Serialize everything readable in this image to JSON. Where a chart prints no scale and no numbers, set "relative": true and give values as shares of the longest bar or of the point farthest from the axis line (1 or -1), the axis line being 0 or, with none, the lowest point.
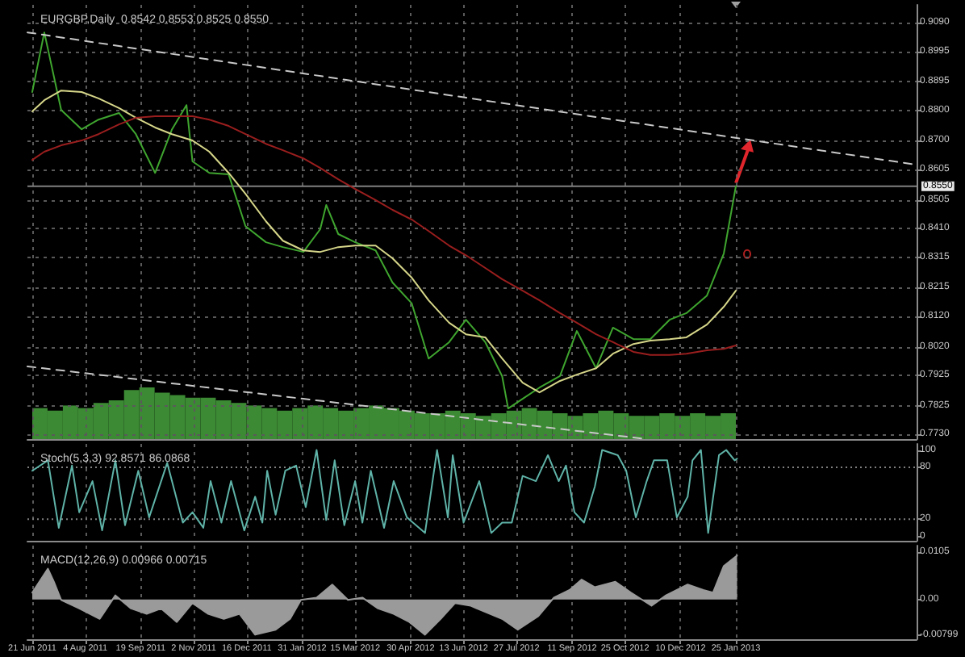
{
  "chart_data": [
    {
      "type": "line",
      "title": "EURGBP,Daily  0.8542 0.8553 0.8525 0.8550",
      "marker": "none",
      "grid": true,
      "tick_labels": "y",
      "xlim": [
        "2011-06-17",
        "2013-06-24"
      ],
      "xticks": [
        {
          "value": "2011-06-21",
          "label": null
        },
        {
          "value": "2011-08-04",
          "label": null
        },
        {
          "value": "2011-09-19",
          "label": null
        },
        {
          "value": "2011-11-02",
          "label": null
        },
        {
          "value": "2011-12-16",
          "label": null
        },
        {
          "value": "2012-01-31",
          "label": null
        },
        {
          "value": "2012-03-15",
          "label": null
        },
        {
          "value": "2012-04-30",
          "label": null
        },
        {
          "value": "2012-06-13",
          "label": null
        },
        {
          "value": "2012-07-27",
          "label": null
        },
        {
          "value": "2012-09-11",
          "label": null
        },
        {
          "value": "2012-10-25",
          "label": null
        },
        {
          "value": "2012-12-10",
          "label": null
        },
        {
          "value": "2013-01-25",
          "label": null
        }
      ],
      "ylim": [
        0.7715,
        0.9149
      ],
      "yticks": [
        {
          "value": 0.773,
          "label": "0.7730"
        },
        {
          "value": 0.7825,
          "label": "0.7825"
        },
        {
          "value": 0.7925,
          "label": "0.7925"
        },
        {
          "value": 0.802,
          "label": "0.8020"
        },
        {
          "value": 0.812,
          "label": "0.8120"
        },
        {
          "value": 0.8215,
          "label": "0.8215"
        },
        {
          "value": 0.8315,
          "label": "0.8315"
        },
        {
          "value": 0.841,
          "label": "0.8410"
        },
        {
          "value": 0.8505,
          "label": "0.8505"
        },
        {
          "value": 0.8605,
          "label": "0.8605"
        },
        {
          "value": 0.87,
          "label": "0.8700"
        },
        {
          "value": 0.88,
          "label": "0.8800"
        },
        {
          "value": 0.8895,
          "label": "0.8895"
        },
        {
          "value": 0.8995,
          "label": "0.8995"
        },
        {
          "value": 0.909,
          "label": "0.9090"
        }
      ],
      "ref_lines": [
        {
          "axis": "y",
          "value": 0.855,
          "label": "0.8550",
          "color": "#808080",
          "line_style": "solid"
        }
      ],
      "x": [
        "2011-06-21",
        "2011-07-01",
        "2011-07-15",
        "2011-08-01",
        "2011-08-15",
        "2011-09-01",
        "2011-09-15",
        "2011-10-01",
        "2011-10-15",
        "2011-11-01",
        "2011-11-15",
        "2011-12-01",
        "2011-12-15",
        "2012-01-01",
        "2012-01-15",
        "2012-02-01",
        "2012-02-15",
        "2012-03-01",
        "2012-03-15",
        "2012-04-01",
        "2012-04-15",
        "2012-05-01",
        "2012-05-15",
        "2012-06-01",
        "2012-06-15",
        "2012-07-01",
        "2012-07-15",
        "2012-08-01",
        "2012-08-15",
        "2012-09-01",
        "2012-09-15",
        "2012-10-01",
        "2012-10-15",
        "2012-11-01",
        "2012-11-15",
        "2012-12-01",
        "2012-12-15",
        "2013-01-01",
        "2013-01-15",
        "2013-01-25"
      ],
      "series": [
        {
          "color": "#3fa52f",
          "x": [
            "2011-06-21",
            "2011-07-01",
            "2011-07-15",
            "2011-08-01",
            "2011-08-15",
            "2011-09-01",
            "2011-09-15",
            "2011-10-01",
            "2011-10-15",
            "2011-10-27",
            "2011-11-01",
            "2011-11-15",
            "2011-12-01",
            "2011-12-15",
            "2012-01-01",
            "2012-01-15",
            "2012-02-01",
            "2012-02-15",
            "2012-02-20",
            "2012-03-01",
            "2012-03-15",
            "2012-04-01",
            "2012-04-15",
            "2012-05-01",
            "2012-05-15",
            "2012-06-01",
            "2012-06-15",
            "2012-07-01",
            "2012-07-15",
            "2012-07-20",
            "2012-08-01",
            "2012-08-15",
            "2012-09-01",
            "2012-09-15",
            "2012-10-01",
            "2012-10-15",
            "2012-11-01",
            "2012-11-15",
            "2012-12-01",
            "2012-12-15",
            "2013-01-01",
            "2013-01-15",
            "2013-01-25"
          ],
          "values": [
            0.8861,
            0.9058,
            0.8802,
            0.8738,
            0.877,
            0.8792,
            0.8722,
            0.8594,
            0.8738,
            0.8818,
            0.8632,
            0.8594,
            0.8589,
            0.8418,
            0.8365,
            0.8349,
            0.8333,
            0.8408,
            0.8488,
            0.8392,
            0.8365,
            0.8338,
            0.8232,
            0.8163,
            0.7981,
            0.8035,
            0.8109,
            0.8035,
            0.7923,
            0.7816,
            0.7848,
            0.7885,
            0.7923,
            0.8072,
            0.7949,
            0.8083,
            0.8045,
            0.8045,
            0.8109,
            0.8131,
            0.8189,
            0.8328,
            0.855
          ]
        },
        {
          "color": "#d6d68a",
          "values": [
            0.8797,
            0.8834,
            0.8866,
            0.8861,
            0.884,
            0.8808,
            0.8776,
            0.8744,
            0.8722,
            0.8701,
            0.8664,
            0.8594,
            0.8525,
            0.8434,
            0.837,
            0.8338,
            0.8333,
            0.8349,
            0.8354,
            0.8354,
            0.8312,
            0.8248,
            0.8173,
            0.8099,
            0.8061,
            0.8051,
            0.7981,
            0.7901,
            0.7869,
            0.7907,
            0.7928,
            0.7949,
            0.7997,
            0.8029,
            0.804,
            0.8045,
            0.8051,
            0.8093,
            0.8152,
            0.8205
          ]
        },
        {
          "color": "#9a1e1e",
          "values": [
            0.8637,
            0.8664,
            0.8685,
            0.8701,
            0.8722,
            0.8754,
            0.8776,
            0.8781,
            0.8781,
            0.8781,
            0.877,
            0.8749,
            0.8722,
            0.869,
            0.8669,
            0.8642,
            0.861,
            0.8573,
            0.8541,
            0.8504,
            0.8472,
            0.844,
            0.8402,
            0.8354,
            0.8322,
            0.828,
            0.8243,
            0.8205,
            0.8173,
            0.8131,
            0.8099,
            0.8061,
            0.8035,
            0.8003,
            0.7993,
            0.7993,
            0.7997,
            0.8008,
            0.8013,
            0.8024
          ]
        },
        {
          "color": "#c8c8c8",
          "line_style": "dashed",
          "x": [
            "2011-06-17",
            "2013-06-24"
          ],
          "values": [
            0.9058,
            0.8621
          ]
        },
        {
          "color": "#c8c8c8",
          "line_style": "dashed",
          "x": [
            "2011-06-17",
            "2012-11-12"
          ],
          "values": [
            0.7955,
            0.7715
          ]
        }
      ]
    },
    {
      "type": "bar",
      "relative": true,
      "color": "#3c8a34",
      "categories": [
        null,
        null,
        null,
        null,
        null,
        null,
        null,
        null,
        null,
        null,
        null,
        null,
        null,
        null,
        null,
        null,
        null,
        null,
        null,
        null,
        null,
        null,
        null,
        null,
        null,
        null,
        null,
        null,
        null,
        null,
        null,
        null,
        null,
        null,
        null,
        null,
        null,
        null,
        null,
        null,
        null,
        null,
        null,
        null,
        null,
        null
      ],
      "values": [
        0.6,
        0.55,
        0.65,
        0.6,
        0.7,
        0.75,
        0.95,
        1,
        0.9,
        0.85,
        0.8,
        0.8,
        0.75,
        0.7,
        0.65,
        0.6,
        0.55,
        0.6,
        0.65,
        0.6,
        0.55,
        0.6,
        0.65,
        0.6,
        0.55,
        0.5,
        0.5,
        0.55,
        0.5,
        0.45,
        0.5,
        0.55,
        0.6,
        0.55,
        0.5,
        0.45,
        0.5,
        0.55,
        0.5,
        0.45,
        0.45,
        0.5,
        0.45,
        0.5,
        0.45,
        0.5
      ]
    },
    {
      "type": "line",
      "title": "Stoch(5,3,3) 92.8571 86.0868",
      "marker": "none",
      "grid": "x",
      "tick_labels": "y",
      "xlim": [
        "2011-06-17",
        "2013-06-24"
      ],
      "xticks": [
        {
          "value": "2011-06-21",
          "label": null
        },
        {
          "value": "2011-08-04",
          "label": null
        },
        {
          "value": "2011-09-19",
          "label": null
        },
        {
          "value": "2011-11-02",
          "label": null
        },
        {
          "value": "2011-12-16",
          "label": null
        },
        {
          "value": "2012-01-31",
          "label": null
        },
        {
          "value": "2012-03-15",
          "label": null
        },
        {
          "value": "2012-04-30",
          "label": null
        },
        {
          "value": "2012-06-13",
          "label": null
        },
        {
          "value": "2012-07-27",
          "label": null
        },
        {
          "value": "2012-09-11",
          "label": null
        },
        {
          "value": "2012-10-25",
          "label": null
        },
        {
          "value": "2012-12-10",
          "label": null
        },
        {
          "value": "2013-01-25",
          "label": null
        }
      ],
      "ylim": [
        -5,
        107
      ],
      "yticks": [
        0,
        20,
        80,
        100
      ],
      "ref_lines": [
        {
          "axis": "y",
          "value": 20,
          "color": "#808080",
          "line_style": "dotted"
        },
        {
          "axis": "y",
          "value": 80,
          "color": "#808080",
          "line_style": "dotted"
        }
      ],
      "series": [
        {
          "color": "#5fb3a8",
          "x": [
            "2011-06-21",
            "2011-07-04",
            "2011-07-13",
            "2011-07-24",
            "2011-07-30",
            "2011-08-10",
            "2011-08-18",
            "2011-08-29",
            "2011-09-06",
            "2011-09-17",
            "2011-09-26",
            "2011-10-11",
            "2011-10-24",
            "2011-11-01",
            "2011-11-10",
            "2011-11-16",
            "2011-11-25",
            "2011-12-03",
            "2011-12-14",
            "2011-12-23",
            "2011-12-29",
            "2012-01-02",
            "2012-01-09",
            "2012-01-17",
            "2012-01-26",
            "2012-02-03",
            "2012-02-12",
            "2012-02-20",
            "2012-02-27",
            "2012-03-06",
            "2012-03-15",
            "2012-03-21",
            "2012-03-28",
            "2012-04-08",
            "2012-04-16",
            "2012-04-27",
            "2012-05-12",
            "2012-05-22",
            "2012-05-31",
            "2012-06-04",
            "2012-06-13",
            "2012-06-26",
            "2012-07-06",
            "2012-07-15",
            "2012-07-23",
            "2012-08-01",
            "2012-08-12",
            "2012-08-22",
            "2012-08-31",
            "2012-09-06",
            "2012-09-13",
            "2012-09-21",
            "2012-09-30",
            "2012-10-06",
            "2012-10-19",
            "2012-10-26",
            "2012-11-03",
            "2012-11-12",
            "2012-11-18",
            "2012-11-29",
            "2012-12-07",
            "2012-12-16",
            "2012-12-20",
            "2012-12-27",
            "2013-01-02",
            "2013-01-11",
            "2013-01-17",
            "2013-01-24",
            "2013-01-26"
          ],
          "values": [
            76,
            88,
            10,
            82,
            28,
            64,
            7,
            88,
            13,
            76,
            22,
            85,
            16,
            28,
            10,
            64,
            16,
            64,
            7,
            46,
            16,
            76,
            25,
            76,
            82,
            34,
            100,
            19,
            88,
            13,
            64,
            16,
            76,
            10,
            64,
            22,
            4,
            100,
            22,
            94,
            16,
            64,
            4,
            16,
            16,
            70,
            64,
            94,
            64,
            82,
            28,
            16,
            58,
            100,
            94,
            76,
            22,
            64,
            88,
            88,
            22,
            46,
            88,
            100,
            4,
            94,
            100,
            88,
            90
          ]
        }
      ]
    },
    {
      "type": "area",
      "title": "MACD(12,26,9) 0.00966 0.00715",
      "marker": "none",
      "grid": "x",
      "xlim": [
        "2011-06-17",
        "2013-06-24"
      ],
      "xticks": [
        {
          "value": "2011-06-21",
          "label": "21 Jun 2011"
        },
        {
          "value": "2011-08-04",
          "label": "4 Aug 2011"
        },
        {
          "value": "2011-09-19",
          "label": "19 Sep 2011"
        },
        {
          "value": "2011-11-02",
          "label": "2 Nov 2011"
        },
        {
          "value": "2011-12-16",
          "label": "16 Dec 2011"
        },
        {
          "value": "2012-01-31",
          "label": "31 Jan 2012"
        },
        {
          "value": "2012-03-15",
          "label": "15 Mar 2012"
        },
        {
          "value": "2012-04-30",
          "label": "30 Apr 2012"
        },
        {
          "value": "2012-06-13",
          "label": "13 Jun 2012"
        },
        {
          "value": "2012-07-27",
          "label": "27 Jul 2012"
        },
        {
          "value": "2012-09-11",
          "label": "11 Sep 2012"
        },
        {
          "value": "2012-10-25",
          "label": "25 Oct 2012"
        },
        {
          "value": "2012-12-10",
          "label": "10 Dec 2012"
        },
        {
          "value": "2013-01-25",
          "label": "25 Jan 2013"
        }
      ],
      "ylim": [
        -0.0088,
        0.0119
      ],
      "yticks": [
        {
          "value": -0.00799,
          "label": "-0.00799"
        },
        {
          "value": 0,
          "label": "0.00"
        },
        0.0105
      ],
      "series": [
        {
          "color": "#9a9a9a",
          "x": [
            "2011-06-21",
            "2011-07-04",
            "2011-07-09",
            "2011-07-15",
            "2011-07-30",
            "2011-08-16",
            "2011-08-29",
            "2011-09-11",
            "2011-09-24",
            "2011-10-06",
            "2011-10-19",
            "2011-11-01",
            "2011-11-14",
            "2011-11-27",
            "2011-12-10",
            "2011-12-23",
            "2012-01-09",
            "2012-01-21",
            "2012-01-30",
            "2012-02-12",
            "2012-02-25",
            "2012-03-09",
            "2012-03-21",
            "2012-04-03",
            "2012-04-16",
            "2012-04-29",
            "2012-05-12",
            "2012-05-25",
            "2012-06-06",
            "2012-06-19",
            "2012-06-24",
            "2012-07-15",
            "2012-07-28",
            "2012-08-14",
            "2012-08-27",
            "2012-09-09",
            "2012-09-19",
            "2012-09-30",
            "2012-10-17",
            "2012-10-30",
            "2012-11-16",
            "2012-11-28",
            "2012-12-16",
            "2012-12-29",
            "2013-01-06",
            "2013-01-15",
            "2013-01-26"
          ],
          "values": [
            0.0015,
            0.0068,
            0.0039,
            -0.0001,
            -0.002,
            -0.0043,
            0.0009,
            -0.002,
            -0.0032,
            -0.002,
            -0.005,
            -0.0008,
            -0.0032,
            -0.0043,
            -0.0032,
            -0.0078,
            -0.0067,
            -0.0043,
            -0.0001,
            0.0004,
            0.0033,
            -0.0001,
            0.0004,
            -0.002,
            -0.0032,
            -0.005,
            -0.0078,
            -0.0043,
            -0.0008,
            -0.0014,
            -0.002,
            -0.0043,
            -0.0067,
            -0.0037,
            0.0004,
            0.0021,
            0.0044,
            0.0027,
            0.0039,
            0.0015,
            -0.0014,
            0.0009,
            0.0033,
            0.0021,
            0.0015,
            0.0074,
            0.0097
          ]
        }
      ]
    }
  ]
}
